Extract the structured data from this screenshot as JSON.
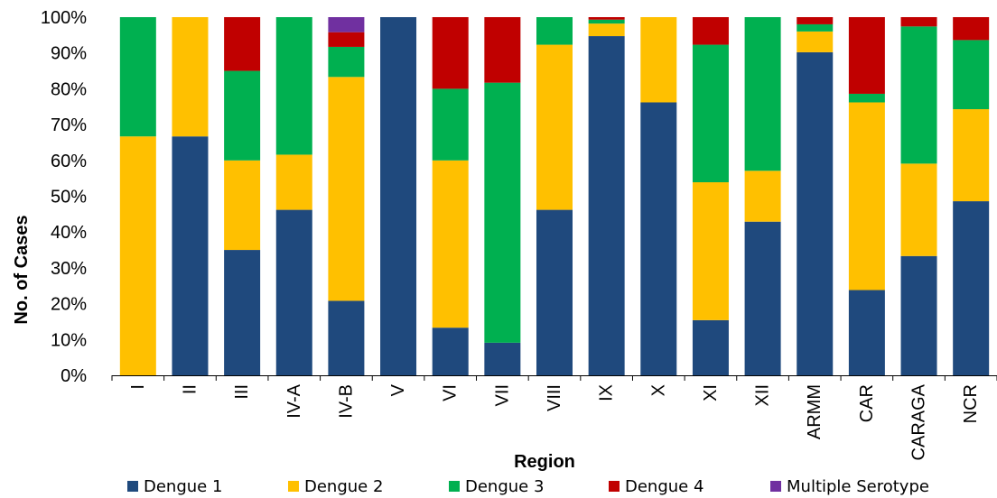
{
  "chart_data": {
    "type": "bar",
    "stacked": true,
    "normalized": true,
    "title": "",
    "xlabel": "Region",
    "ylabel": "No. of Cases",
    "ylim": [
      0,
      100
    ],
    "yticks": [
      "0%",
      "10%",
      "20%",
      "30%",
      "40%",
      "50%",
      "60%",
      "70%",
      "80%",
      "90%",
      "100%"
    ],
    "categories": [
      "I",
      "II",
      "III",
      "IV-A",
      "IV-B",
      "V",
      "VI",
      "VII",
      "VIII",
      "IX",
      "X",
      "XI",
      "XII",
      "ARMM",
      "CAR",
      "CARAGA",
      "NCR"
    ],
    "legend_position": "bottom",
    "series": [
      {
        "name": "Dengue 1",
        "color": "#1f497d",
        "values": [
          0,
          66.7,
          35,
          46.2,
          20.8,
          100,
          13.3,
          9.1,
          46.2,
          94.7,
          76.2,
          15.4,
          42.9,
          90.2,
          23.8,
          33.3,
          48.6
        ]
      },
      {
        "name": "Dengue 2",
        "color": "#ffc000",
        "values": [
          66.7,
          33.3,
          25,
          15.4,
          62.5,
          0,
          46.7,
          0,
          46.1,
          3.5,
          23.8,
          38.5,
          14.2,
          5.8,
          52.4,
          25.8,
          25.7
        ]
      },
      {
        "name": "Dengue 3",
        "color": "#00b050",
        "values": [
          33.3,
          0,
          25,
          38.4,
          8.4,
          0,
          20,
          72.6,
          7.7,
          1.1,
          0,
          38.4,
          42.9,
          2,
          2.4,
          38.3,
          19.3
        ]
      },
      {
        "name": "Dengue 4",
        "color": "#c00000",
        "values": [
          0,
          0,
          15,
          0,
          4.1,
          0,
          20,
          18.3,
          0,
          0.7,
          0,
          7.7,
          0,
          2,
          21.4,
          2.6,
          6.4
        ]
      },
      {
        "name": "Multiple Serotype",
        "color": "#7030a0",
        "values": [
          0,
          0,
          0,
          0,
          4.2,
          0,
          0,
          0,
          0,
          0,
          0,
          0,
          0,
          0,
          0,
          0,
          0
        ]
      }
    ]
  }
}
